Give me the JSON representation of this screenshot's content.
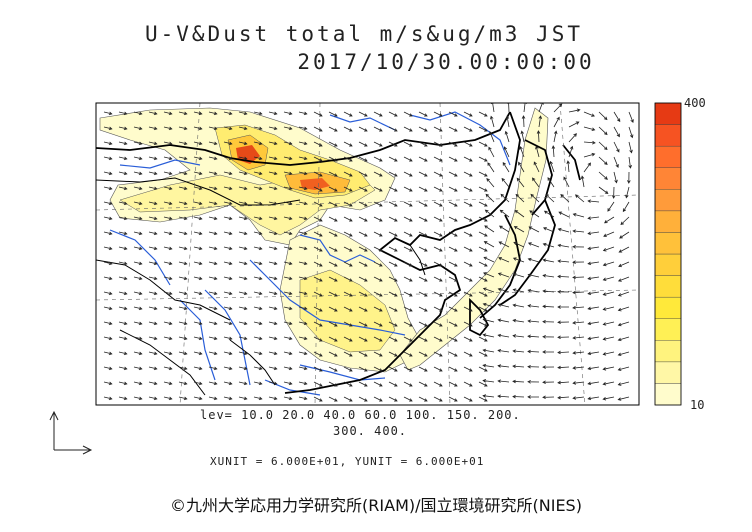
{
  "title": {
    "line1": "U-V&Dust total m/s&ug/m3 JST",
    "line2": "2017/10/30.00:00:00"
  },
  "levels_text": {
    "line1": "lev= 10.0 20.0 40.0 60.0 100. 150. 200.",
    "line2": "300. 400."
  },
  "unit_text": "XUNIT = 6.000E+01, YUNIT = 6.000E+01",
  "copyright": "©九州大学応用力学研究所(RIAM)/国立環境研究所(NIES)",
  "colorbar": {
    "max_label": "400",
    "min_label": "10",
    "colors": [
      "#fffccc",
      "#fff7a6",
      "#fff37e",
      "#fff055",
      "#ffe93a",
      "#ffdd3a",
      "#ffcf3a",
      "#ffc13a",
      "#ffb03a",
      "#ff9b3a",
      "#ff8536",
      "#ff6e2c",
      "#f65322",
      "#e63a14"
    ]
  },
  "colors": {
    "coast": "#000000",
    "rivers": "#2a5ed8",
    "vectors": "#222222",
    "dust_low": "#fffccc",
    "dust_high": "#e63a14"
  },
  "icons": [
    "reference-vector-icon"
  ]
}
